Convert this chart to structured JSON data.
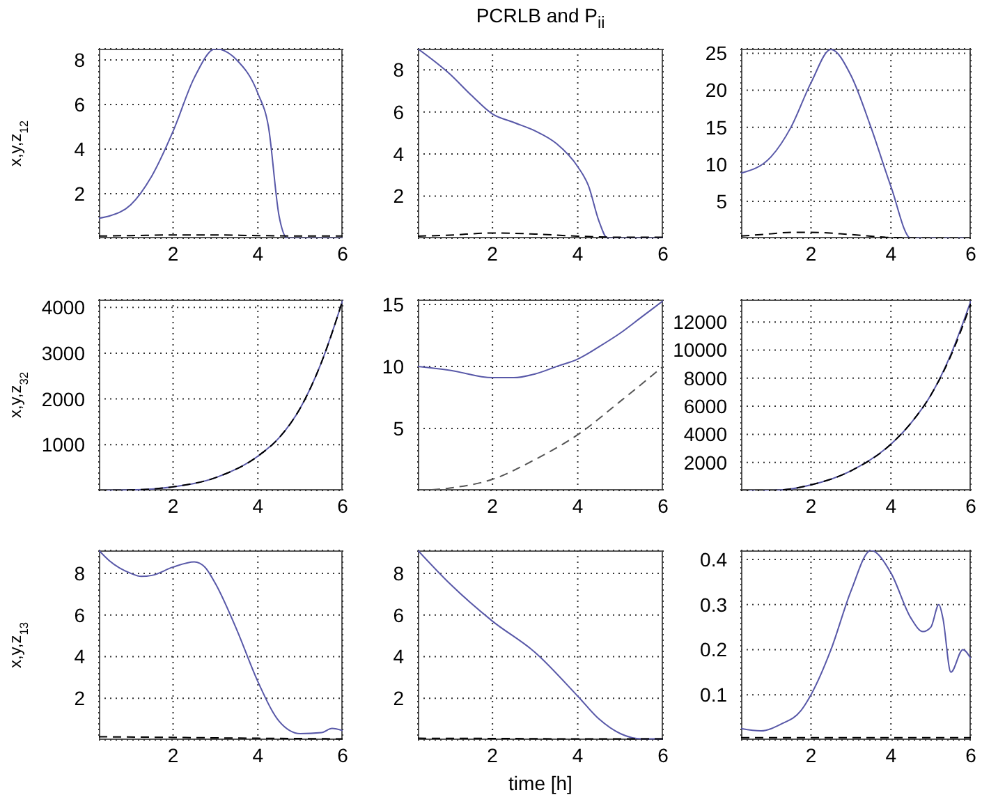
{
  "chart_data": [
    {
      "type": "line",
      "ylabel": "x,y,z$_{12}$",
      "xlim": [
        0.25,
        6
      ],
      "xticks": [
        2,
        4,
        6
      ],
      "ylim": [
        0,
        8.5
      ],
      "yticks": [
        2,
        4,
        6,
        8
      ],
      "grid": true,
      "series": [
        {
          "color": "#5858a8",
          "line_style": "solid",
          "x": [
            0.25,
            0.5,
            1,
            1.5,
            2,
            2.5,
            3,
            3.5,
            4,
            4.25,
            4.5,
            4.7,
            5,
            5.5,
            6
          ],
          "values": [
            0.9,
            1.0,
            1.5,
            2.8,
            4.8,
            7.2,
            8.5,
            8.0,
            6.5,
            5.0,
            1.0,
            0,
            0,
            0,
            0
          ]
        },
        {
          "color": "#000000",
          "line_style": "dashed",
          "x": [
            0.25,
            1,
            2,
            3,
            4,
            5,
            6
          ],
          "values": [
            0.1,
            0.12,
            0.15,
            0.15,
            0.12,
            0.1,
            0.1
          ]
        }
      ]
    },
    {
      "type": "line",
      "title": "PCRLB and P$_{ii}$",
      "xlim": [
        0.25,
        6
      ],
      "xticks": [
        2,
        4,
        6
      ],
      "ylim": [
        0,
        9
      ],
      "yticks": [
        2,
        4,
        6,
        8
      ],
      "grid": true,
      "series": [
        {
          "color": "#5858a8",
          "line_style": "solid",
          "x": [
            0.25,
            1,
            1.5,
            2,
            2.5,
            3,
            3.5,
            4,
            4.25,
            4.5,
            4.7,
            5,
            5.5,
            6
          ],
          "values": [
            9,
            7.8,
            6.8,
            5.9,
            5.5,
            5.1,
            4.5,
            3.4,
            2.5,
            0.8,
            0,
            0,
            0,
            0
          ]
        },
        {
          "color": "#000000",
          "line_style": "dashed",
          "x": [
            0.25,
            1,
            2,
            3,
            4,
            5,
            6
          ],
          "values": [
            0.1,
            0.15,
            0.25,
            0.2,
            0.1,
            0.05,
            0.05
          ]
        }
      ]
    },
    {
      "type": "line",
      "xlim": [
        0.25,
        6
      ],
      "xticks": [
        2,
        4,
        6
      ],
      "ylim": [
        0,
        25.6
      ],
      "yticks": [
        5,
        10,
        15,
        20,
        25
      ],
      "grid": true,
      "series": [
        {
          "color": "#5858a8",
          "line_style": "solid",
          "x": [
            0.25,
            1,
            1.5,
            2,
            2.5,
            3,
            3.5,
            4,
            4.5,
            5,
            5.5,
            6
          ],
          "values": [
            8.8,
            11,
            15,
            21,
            25.5,
            22,
            15,
            7,
            0,
            0,
            0,
            0
          ]
        },
        {
          "color": "#000000",
          "line_style": "dashed",
          "x": [
            0.25,
            1,
            1.5,
            2,
            3,
            4,
            5,
            6
          ],
          "values": [
            0.3,
            0.6,
            0.8,
            0.8,
            0.5,
            0.1,
            0,
            0
          ]
        }
      ]
    },
    {
      "type": "line",
      "ylabel": "x,y,z$_{32}$",
      "xlim": [
        0.25,
        6
      ],
      "xticks": [
        2,
        4,
        6
      ],
      "ylim": [
        0,
        4170
      ],
      "yticks": [
        1000,
        2000,
        3000,
        4000
      ],
      "grid": true,
      "series": [
        {
          "color": "#5858a8",
          "line_style": "solid",
          "x": [
            0.25,
            1,
            2,
            3,
            4,
            4.5,
            5,
            5.5,
            6
          ],
          "values": [
            0,
            10,
            80,
            280,
            750,
            1150,
            1800,
            2800,
            4150
          ]
        },
        {
          "color": "#000000",
          "line_style": "dashed",
          "x": [
            0.25,
            1,
            2,
            3,
            4,
            4.5,
            5,
            5.5,
            6
          ],
          "values": [
            0,
            10,
            80,
            280,
            750,
            1150,
            1800,
            2800,
            4150
          ]
        }
      ]
    },
    {
      "type": "line",
      "xlim": [
        0.25,
        6
      ],
      "xticks": [
        2,
        4,
        6
      ],
      "ylim": [
        0,
        15.4
      ],
      "yticks": [
        5,
        10,
        15
      ],
      "grid": true,
      "series": [
        {
          "color": "#5858a8",
          "line_style": "solid",
          "x": [
            0.25,
            1,
            2,
            2.5,
            3,
            3.5,
            4,
            4.5,
            5,
            5.5,
            6
          ],
          "values": [
            10,
            9.7,
            9.1,
            9.1,
            9.4,
            10,
            10.6,
            11.6,
            12.7,
            14,
            15.3
          ]
        },
        {
          "color": "#555555",
          "line_style": "dashed",
          "x": [
            0.25,
            1,
            2,
            3,
            4,
            5,
            6
          ],
          "values": [
            0,
            0.2,
            0.9,
            2.5,
            4.5,
            7.2,
            10
          ]
        }
      ]
    },
    {
      "type": "line",
      "xlim": [
        0.25,
        6
      ],
      "xticks": [
        2,
        4,
        6
      ],
      "ylim": [
        0,
        13600
      ],
      "yticks": [
        2000,
        4000,
        6000,
        8000,
        10000,
        12000
      ],
      "grid": true,
      "series": [
        {
          "color": "#5858a8",
          "line_style": "solid",
          "x": [
            0.25,
            1,
            2,
            3,
            4,
            4.5,
            5,
            5.5,
            6
          ],
          "values": [
            0,
            0,
            400,
            1400,
            3300,
            4800,
            6800,
            9700,
            13500
          ]
        },
        {
          "color": "#000000",
          "line_style": "dashed",
          "x": [
            0.25,
            1,
            2,
            3,
            4,
            4.5,
            5,
            5.5,
            6
          ],
          "values": [
            0,
            0,
            400,
            1400,
            3300,
            4800,
            6800,
            9600,
            13300
          ]
        }
      ]
    },
    {
      "type": "line",
      "ylabel": "x,y,z$_{13}$",
      "xlim": [
        0.25,
        6
      ],
      "xticks": [
        2,
        4,
        6
      ],
      "ylim": [
        0,
        9.1
      ],
      "yticks": [
        2,
        4,
        6,
        8
      ],
      "grid": true,
      "series": [
        {
          "color": "#5858a8",
          "line_style": "solid",
          "x": [
            0.25,
            0.5,
            1,
            1.25,
            1.5,
            2,
            2.5,
            2.75,
            3,
            3.5,
            4,
            4.5,
            5,
            5.5,
            5.75,
            6
          ],
          "values": [
            9.1,
            8.6,
            8.0,
            7.85,
            7.9,
            8.3,
            8.55,
            8.3,
            7.5,
            5.3,
            2.8,
            0.9,
            0.3,
            0.35,
            0.55,
            0.45
          ]
        },
        {
          "color": "#000000",
          "line_style": "dashed",
          "x": [
            0.25,
            2,
            4,
            6
          ],
          "values": [
            0.15,
            0.12,
            0.08,
            0.05
          ]
        }
      ]
    },
    {
      "type": "line",
      "xlabel": "time [h]",
      "xlim": [
        0.25,
        6
      ],
      "xticks": [
        2,
        4,
        6
      ],
      "ylim": [
        0,
        9.1
      ],
      "yticks": [
        2,
        4,
        6,
        8
      ],
      "grid": true,
      "series": [
        {
          "color": "#5858a8",
          "line_style": "solid",
          "x": [
            0.25,
            1,
            2,
            3,
            4,
            4.5,
            5,
            5.5,
            6
          ],
          "values": [
            9.1,
            7.5,
            5.7,
            4.2,
            2.1,
            1.0,
            0.3,
            0.05,
            0.05
          ]
        },
        {
          "color": "#000000",
          "line_style": "dashed",
          "x": [
            0.25,
            2,
            4,
            6
          ],
          "values": [
            0.08,
            0.07,
            0.05,
            0.05
          ]
        }
      ]
    },
    {
      "type": "line",
      "xlim": [
        0.25,
        6
      ],
      "xticks": [
        2,
        4,
        6
      ],
      "ylim": [
        0,
        0.42
      ],
      "yticks": [
        0.1,
        0.2,
        0.3,
        0.4
      ],
      "grid": true,
      "series": [
        {
          "color": "#5858a8",
          "line_style": "solid",
          "x": [
            0.25,
            0.75,
            1.25,
            1.75,
            2,
            2.5,
            3,
            3.5,
            4,
            4.5,
            4.8,
            5,
            5.2,
            5.3,
            5.5,
            5.8,
            6
          ],
          "values": [
            0.025,
            0.02,
            0.035,
            0.065,
            0.1,
            0.2,
            0.33,
            0.42,
            0.37,
            0.27,
            0.24,
            0.25,
            0.3,
            0.27,
            0.15,
            0.2,
            0.18
          ]
        },
        {
          "color": "#000000",
          "line_style": "dashed",
          "x": [
            0.25,
            2,
            4,
            6
          ],
          "values": [
            0.005,
            0.005,
            0.005,
            0.005
          ]
        }
      ]
    }
  ]
}
